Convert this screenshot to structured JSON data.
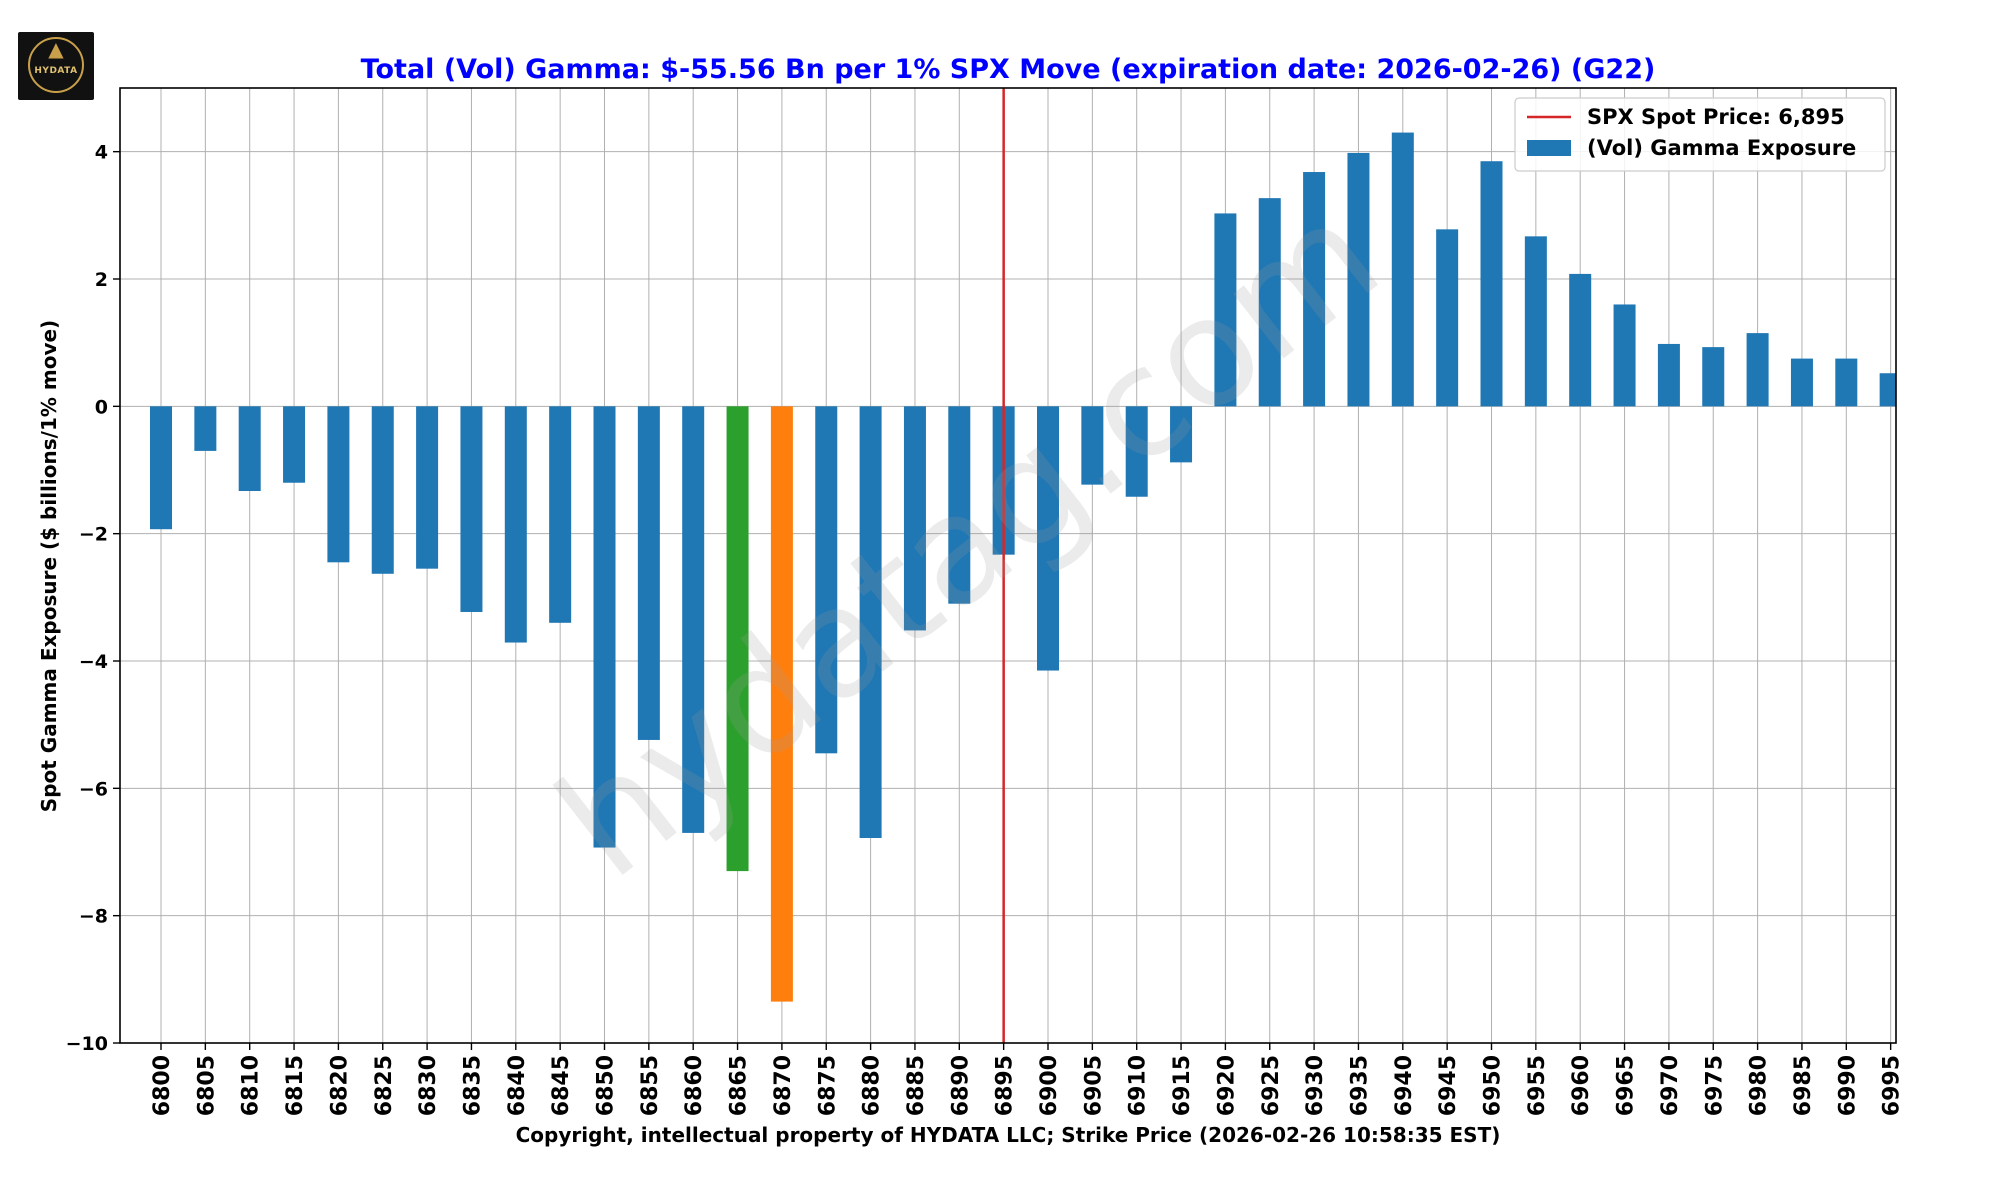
{
  "logo": {
    "text": "HYDATA",
    "icon": "wolf-icon"
  },
  "watermark": "hydatag.com",
  "colors": {
    "bar": "#1f77b4",
    "highlight_green": "#2ca02c",
    "highlight_orange": "#ff7f0e",
    "spot_line": "#d62728",
    "title": "#0000ff",
    "grid": "#b0b0b0"
  },
  "chart_data": {
    "type": "bar",
    "title": "Total (Vol) Gamma: $-55.56 Bn per 1% SPX Move (expiration date: 2026-02-26) (G22)",
    "xlabel": "Copyright, intellectual property of HYDATA LLC; Strike Price (2026-02-26 10:58:35 EST)",
    "ylabel": "Spot Gamma Exposure ($ billions/1% move)",
    "ylim": [
      -10,
      5
    ],
    "yticks": [
      -10,
      -8,
      -6,
      -4,
      -2,
      0,
      2,
      4
    ],
    "ytick_labels": [
      "−10",
      "−8",
      "−6",
      "−4",
      "−2",
      "0",
      "2",
      "4"
    ],
    "grid": true,
    "legend_position": "top-right",
    "categories": [
      "6800",
      "6805",
      "6810",
      "6815",
      "6820",
      "6825",
      "6830",
      "6835",
      "6840",
      "6845",
      "6850",
      "6855",
      "6860",
      "6865",
      "6870",
      "6875",
      "6880",
      "6885",
      "6890",
      "6895",
      "6900",
      "6905",
      "6910",
      "6915",
      "6920",
      "6925",
      "6930",
      "6935",
      "6940",
      "6945",
      "6950",
      "6955",
      "6960",
      "6965",
      "6970",
      "6975",
      "6980",
      "6985",
      "6990",
      "6995"
    ],
    "values": [
      -1.93,
      -0.7,
      -1.33,
      -1.2,
      -2.45,
      -2.63,
      -2.55,
      -3.23,
      -3.71,
      -3.4,
      -6.93,
      -5.24,
      -6.7,
      -7.3,
      -9.35,
      -5.45,
      -6.78,
      -3.52,
      -3.1,
      -2.33,
      -4.15,
      -1.23,
      -1.42,
      -0.88,
      3.03,
      3.27,
      3.68,
      3.98,
      4.3,
      2.78,
      3.85,
      2.67,
      2.08,
      1.6,
      0.98,
      0.93,
      1.15,
      0.75,
      0.75,
      0.52
    ],
    "highlights": [
      {
        "strike": "6865",
        "color": "#2ca02c"
      },
      {
        "strike": "6870",
        "color": "#ff7f0e"
      }
    ],
    "spot": {
      "value": "6895",
      "label": "SPX Spot Price: 6,895"
    },
    "series": [
      {
        "name": "(Vol) Gamma Exposure",
        "values_ref": "values"
      }
    ]
  }
}
